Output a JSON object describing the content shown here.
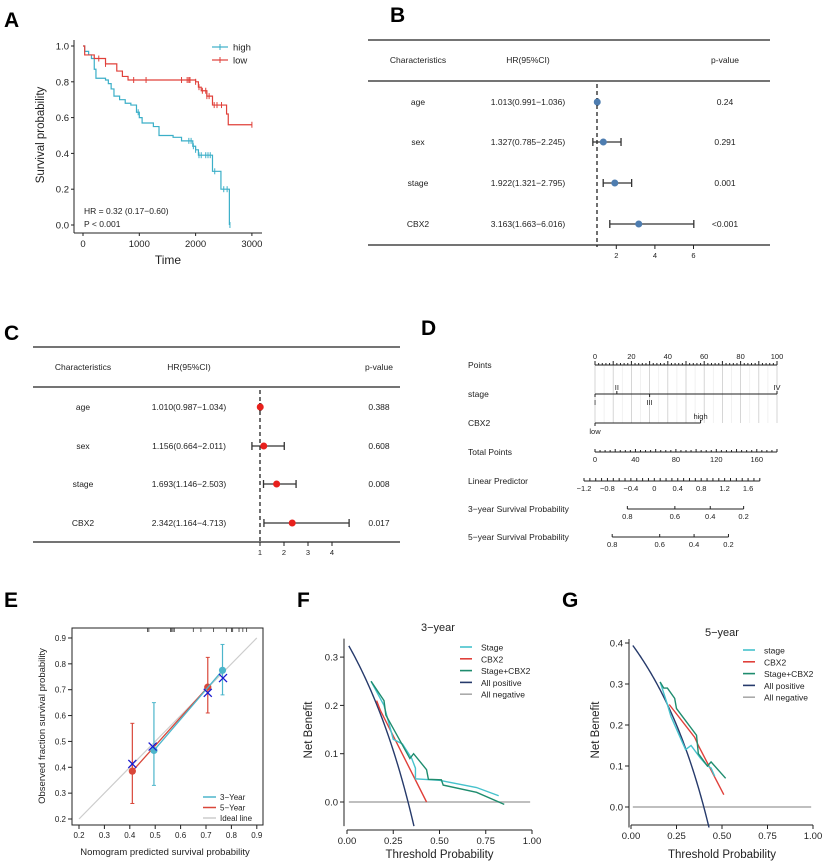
{
  "panels": [
    "A",
    "B",
    "C",
    "D",
    "E",
    "F",
    "G"
  ],
  "chart_data": [
    {
      "panel": "A",
      "type": "line",
      "subtype": "kaplan-meier",
      "xlabel": "Time",
      "ylabel": "Survival probability",
      "xlim": [
        0,
        3000
      ],
      "ylim": [
        0,
        1
      ],
      "xticks": [
        "0",
        "1000",
        "2000",
        "3000"
      ],
      "yticks": [
        "0.0",
        "0.2",
        "0.4",
        "0.6",
        "0.8",
        "1.0"
      ],
      "legend_position": "top-right",
      "annotations": [
        "HR = 0.32 (0.17−0.60)",
        "P < 0.001"
      ],
      "series": [
        {
          "name": "high",
          "color": "#3BAFC8",
          "points": [
            [
              0,
              1
            ],
            [
              30,
              0.97
            ],
            [
              100,
              0.95
            ],
            [
              150,
              0.93
            ],
            [
              200,
              0.87
            ],
            [
              230,
              0.82
            ],
            [
              400,
              0.81
            ],
            [
              450,
              0.79
            ],
            [
              500,
              0.76
            ],
            [
              550,
              0.72
            ],
            [
              650,
              0.7
            ],
            [
              750,
              0.68
            ],
            [
              850,
              0.67
            ],
            [
              950,
              0.63
            ],
            [
              1000,
              0.6
            ],
            [
              1050,
              0.57
            ],
            [
              1250,
              0.55
            ],
            [
              1350,
              0.5
            ],
            [
              1600,
              0.49
            ],
            [
              1750,
              0.47
            ],
            [
              1950,
              0.44
            ],
            [
              2000,
              0.42
            ],
            [
              2050,
              0.39
            ],
            [
              2300,
              0.3
            ],
            [
              2450,
              0.2
            ],
            [
              2600,
              0.0
            ]
          ],
          "censored": [
            980,
            1880,
            1920,
            1960,
            2000,
            2060,
            2100,
            2180,
            2220,
            2260,
            2340,
            2500,
            2560,
            2610
          ]
        },
        {
          "name": "low",
          "color": "#E0403A",
          "points": [
            [
              0,
              1
            ],
            [
              30,
              0.95
            ],
            [
              200,
              0.93
            ],
            [
              400,
              0.9
            ],
            [
              600,
              0.86
            ],
            [
              700,
              0.83
            ],
            [
              800,
              0.81
            ],
            [
              2000,
              0.8
            ],
            [
              2050,
              0.77
            ],
            [
              2100,
              0.75
            ],
            [
              2200,
              0.72
            ],
            [
              2300,
              0.67
            ],
            [
              2550,
              0.62
            ],
            [
              2580,
              0.56
            ],
            [
              3000,
              0.56
            ]
          ],
          "censored": [
            280,
            400,
            900,
            1120,
            1750,
            1850,
            1880,
            1900,
            2000,
            2060,
            2120,
            2180,
            2200,
            2240,
            2330,
            2380,
            2460,
            3000
          ]
        }
      ]
    },
    {
      "panel": "B",
      "type": "forest",
      "headers": [
        "Characteristics",
        "HR(95%CI)",
        "p-value"
      ],
      "point_color": "#4E7DB0",
      "xticks": [
        "2",
        "4",
        "6"
      ],
      "reference": 1,
      "rows": [
        {
          "name": "age",
          "hr_text": "1.013(0.991−1.036)",
          "p": "0.24",
          "hr": 1.013,
          "lo": 0.991,
          "hi": 1.036
        },
        {
          "name": "sex",
          "hr_text": "1.327(0.785−2.245)",
          "p": "0.291",
          "hr": 1.327,
          "lo": 0.785,
          "hi": 2.245
        },
        {
          "name": "stage",
          "hr_text": "1.922(1.321−2.795)",
          "p": "0.001",
          "hr": 1.922,
          "lo": 1.321,
          "hi": 2.795
        },
        {
          "name": "CBX2",
          "hr_text": "3.163(1.663−6.016)",
          "p": "<0.001",
          "hr": 3.163,
          "lo": 1.663,
          "hi": 6.016
        }
      ]
    },
    {
      "panel": "C",
      "type": "forest",
      "headers": [
        "Characteristics",
        "HR(95%CI)",
        "p-value"
      ],
      "point_color": "#E8201C",
      "xticks": [
        "1",
        "2",
        "3",
        "4"
      ],
      "reference": 1,
      "rows": [
        {
          "name": "age",
          "hr_text": "1.010(0.987−1.034)",
          "p": "0.388",
          "hr": 1.01,
          "lo": 0.987,
          "hi": 1.034
        },
        {
          "name": "sex",
          "hr_text": "1.156(0.664−2.011)",
          "p": "0.608",
          "hr": 1.156,
          "lo": 0.664,
          "hi": 2.011
        },
        {
          "name": "stage",
          "hr_text": "1.693(1.146−2.503)",
          "p": "0.008",
          "hr": 1.693,
          "lo": 1.146,
          "hi": 2.503
        },
        {
          "name": "CBX2",
          "hr_text": "2.342(1.164−4.713)",
          "p": "0.017",
          "hr": 2.342,
          "lo": 1.164,
          "hi": 4.713
        }
      ]
    },
    {
      "panel": "D",
      "type": "nomogram",
      "rows": {
        "points": {
          "label": "Points",
          "ticks": [
            "0",
            "20",
            "40",
            "60",
            "80",
            "100"
          ]
        },
        "stage": {
          "label": "stage",
          "levels": [
            {
              "label": "I",
              "points": 0
            },
            {
              "label": "II",
              "points": 12
            },
            {
              "label": "III",
              "points": 30
            },
            {
              "label": "IV",
              "points": 100
            }
          ]
        },
        "cbx2": {
          "label": "CBX2",
          "levels": [
            {
              "label": "low",
              "points": 0
            },
            {
              "label": "high",
              "points": 58
            }
          ]
        },
        "total_points": {
          "label": "Total Points",
          "ticks": [
            "0",
            "40",
            "80",
            "120",
            "160"
          ],
          "range": [
            0,
            180
          ]
        },
        "linear_predictor": {
          "label": "Linear Predictor",
          "ticks": [
            "−1.2",
            "−0.8",
            "−0.4",
            "0",
            "0.4",
            "0.8",
            "1.2",
            "1.6"
          ]
        },
        "surv3": {
          "label": "3−year Survival Probability",
          "ticks": [
            "0.8",
            "0.6",
            "0.4",
            "0.2"
          ]
        },
        "surv5": {
          "label": "5−year Survival Probability",
          "ticks": [
            "0.8",
            "0.6",
            "0.4",
            "0.2"
          ]
        }
      }
    },
    {
      "panel": "E",
      "type": "scatter",
      "subtype": "calibration",
      "xlabel": "Nomogram predicted survival probability",
      "ylabel": "Observed fraction survival probability",
      "xlim": [
        0.2,
        0.9
      ],
      "ylim": [
        0.2,
        0.9
      ],
      "xticks": [
        "0.2",
        "0.3",
        "0.4",
        "0.5",
        "0.6",
        "0.7",
        "0.8",
        "0.9"
      ],
      "yticks": [
        "0.2",
        "0.3",
        "0.4",
        "0.5",
        "0.6",
        "0.7",
        "0.8",
        "0.9"
      ],
      "legend_position": "bottom-right",
      "series": [
        {
          "name": "3−Year",
          "color": "#4DB6CB",
          "points": [
            {
              "x": 0.495,
              "y": 0.465,
              "lo": 0.33,
              "hi": 0.65
            },
            {
              "x": 0.765,
              "y": 0.775,
              "lo": 0.68,
              "hi": 0.875
            }
          ]
        },
        {
          "name": "5−Year",
          "color": "#D9473A",
          "points": [
            {
              "x": 0.41,
              "y": 0.385,
              "lo": 0.26,
              "hi": 0.57
            },
            {
              "x": 0.707,
              "y": 0.71,
              "lo": 0.61,
              "hi": 0.825
            }
          ]
        },
        {
          "name": "Ideal line",
          "color": "#CCCCCC",
          "points": [
            {
              "x": 0.2,
              "y": 0.2
            },
            {
              "x": 0.9,
              "y": 0.9
            }
          ]
        }
      ],
      "bias_corrected": {
        "color": "#1A1AD0",
        "points": [
          [
            0.41,
            0.413
          ],
          [
            0.49,
            0.48
          ],
          [
            0.707,
            0.688
          ],
          [
            0.767,
            0.745
          ]
        ]
      },
      "rug": [
        0.47,
        0.475,
        0.56,
        0.565,
        0.57,
        0.575,
        0.65,
        0.68,
        0.73,
        0.78,
        0.8,
        0.805,
        0.83,
        0.845,
        0.86
      ]
    },
    {
      "panel": "F",
      "type": "line",
      "subtype": "decision-curve",
      "title": "3−year",
      "xlabel": "Threshold Probability",
      "ylabel": "Net Benefit",
      "xlim": [
        0,
        1
      ],
      "ylim": [
        -0.05,
        0.33
      ],
      "xticks": [
        "0.00",
        "0.25",
        "0.50",
        "0.75",
        "1.00"
      ],
      "yticks": [
        "0.0",
        "0.1",
        "0.2",
        "0.3"
      ],
      "legend_position": "top-right",
      "series": [
        {
          "name": "Stage",
          "color": "#46C2CC",
          "points": [
            [
              0.13,
              0.25
            ],
            [
              0.2,
              0.2
            ],
            [
              0.25,
              0.13
            ],
            [
              0.3,
              0.12
            ],
            [
              0.35,
              0.09
            ],
            [
              0.37,
              0.07
            ],
            [
              0.37,
              0.048
            ],
            [
              0.5,
              0.045
            ],
            [
              0.7,
              0.03
            ],
            [
              0.82,
              0.013
            ]
          ]
        },
        {
          "name": "CBX2",
          "color": "#E0403A",
          "points": [
            [
              0.16,
              0.21
            ],
            [
              0.18,
              0.19
            ],
            [
              0.43,
              0.0
            ]
          ]
        },
        {
          "name": "Stage+CBX2",
          "color": "#1E8C6E",
          "points": [
            [
              0.13,
              0.25
            ],
            [
              0.2,
              0.21
            ],
            [
              0.21,
              0.18
            ],
            [
              0.34,
              0.09
            ],
            [
              0.36,
              0.1
            ],
            [
              0.43,
              0.067
            ],
            [
              0.44,
              0.047
            ],
            [
              0.51,
              0.046
            ],
            [
              0.52,
              0.035
            ],
            [
              0.7,
              0.02
            ],
            [
              0.85,
              -0.005
            ]
          ]
        },
        {
          "name": "All positive",
          "color": "#263A6B",
          "prevalence": 0.33
        },
        {
          "name": "All negative",
          "color": "#AAAAAA",
          "points": [
            [
              0.01,
              0
            ],
            [
              0.99,
              0
            ]
          ]
        }
      ]
    },
    {
      "panel": "G",
      "type": "line",
      "subtype": "decision-curve",
      "title": "5−year",
      "xlabel": "Threshold Probability",
      "ylabel": "Net Benefit",
      "xlim": [
        0,
        1
      ],
      "ylim": [
        -0.05,
        0.4
      ],
      "xticks": [
        "0.00",
        "0.25",
        "0.50",
        "0.75",
        "1.00"
      ],
      "yticks": [
        "0.0",
        "0.1",
        "0.2",
        "0.3",
        "0.4"
      ],
      "legend_position": "top-right",
      "series": [
        {
          "name": "stage",
          "color": "#46C2CC",
          "points": [
            [
              0.16,
              0.305
            ],
            [
              0.2,
              0.25
            ],
            [
              0.22,
              0.22
            ],
            [
              0.3,
              0.14
            ],
            [
              0.33,
              0.15
            ],
            [
              0.38,
              0.12
            ],
            [
              0.42,
              0.1
            ],
            [
              0.44,
              0.095
            ],
            [
              0.46,
              0.075
            ]
          ]
        },
        {
          "name": "CBX2",
          "color": "#E0403A",
          "points": [
            [
              0.21,
              0.25
            ],
            [
              0.35,
              0.17
            ],
            [
              0.37,
              0.15
            ],
            [
              0.51,
              0.03
            ]
          ]
        },
        {
          "name": "Stage+CBX2",
          "color": "#1E8C6E",
          "points": [
            [
              0.16,
              0.305
            ],
            [
              0.18,
              0.29
            ],
            [
              0.2,
              0.29
            ],
            [
              0.24,
              0.265
            ],
            [
              0.25,
              0.24
            ],
            [
              0.36,
              0.175
            ],
            [
              0.37,
              0.13
            ],
            [
              0.42,
              0.1
            ],
            [
              0.44,
              0.11
            ],
            [
              0.52,
              0.07
            ]
          ]
        },
        {
          "name": "All positive",
          "color": "#263A6B",
          "prevalence": 0.4
        },
        {
          "name": "All negative",
          "color": "#AAAAAA",
          "points": [
            [
              0.01,
              0
            ],
            [
              0.99,
              0
            ]
          ]
        }
      ]
    }
  ]
}
